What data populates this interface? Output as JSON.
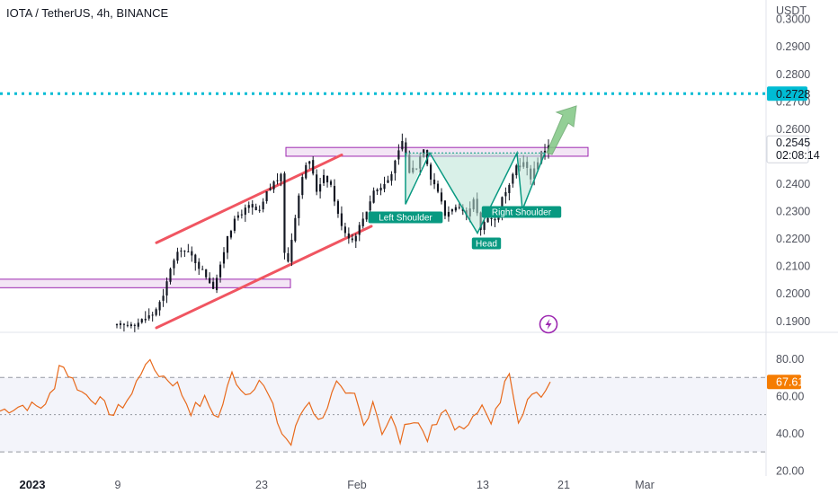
{
  "header": {
    "title": "IOTA / TetherUS, 4h, BINANCE",
    "currency": "USDT"
  },
  "colors": {
    "candle": "#131722",
    "channel": "#f05561",
    "zone_fill": "#f3e5f5",
    "zone_stroke": "#9c27b0",
    "target_line": "#00bcd4",
    "pattern": "#089981",
    "arrow": "#81c784",
    "rsi_line": "#e8691b",
    "rsi_badge": "#f57c00",
    "price_badge_bg": "#ffffff"
  },
  "chart_data": [
    {
      "type": "candlestick",
      "title": "IOTA / TetherUS, 4h, BINANCE",
      "ylabel": "USDT",
      "y_ticks": [
        "0.3000",
        "0.2900",
        "0.2800",
        "0.2700",
        "0.2600",
        "0.2400",
        "0.2300",
        "0.2200",
        "0.2100",
        "0.2000",
        "0.1900"
      ],
      "x_ticks": [
        "2023",
        "9",
        "23",
        "Feb",
        "13",
        "21",
        "Mar"
      ],
      "ylim": [
        0.1865,
        0.303
      ],
      "grid": false,
      "close_path": [
        [
          0,
          0.188
        ],
        [
          6,
          0.1895
        ],
        [
          10,
          0.1925
        ],
        [
          13,
          0.1985
        ],
        [
          15,
          0.2095
        ],
        [
          18,
          0.2165
        ],
        [
          21,
          0.2135
        ],
        [
          25,
          0.2065
        ],
        [
          27,
          0.2025
        ],
        [
          29,
          0.2095
        ],
        [
          31,
          0.2215
        ],
        [
          34,
          0.2285
        ],
        [
          37,
          0.2315
        ],
        [
          40,
          0.2295
        ],
        [
          42,
          0.2365
        ],
        [
          44,
          0.2405
        ],
        [
          46,
          0.2425
        ],
        [
          47,
          0.2155
        ],
        [
          48,
          0.2115
        ],
        [
          50,
          0.2285
        ],
        [
          52,
          0.2435
        ],
        [
          54,
          0.2485
        ],
        [
          56,
          0.2375
        ],
        [
          58,
          0.2435
        ],
        [
          60,
          0.2395
        ],
        [
          62,
          0.2285
        ],
        [
          64,
          0.2225
        ],
        [
          66,
          0.2195
        ],
        [
          68,
          0.2245
        ],
        [
          70,
          0.2305
        ],
        [
          72,
          0.2375
        ],
        [
          74,
          0.2385
        ],
        [
          76,
          0.2415
        ],
        [
          78,
          0.2475
        ],
        [
          80,
          0.2555
        ],
        [
          82,
          0.2445
        ],
        [
          84,
          0.2465
        ],
        [
          86,
          0.2535
        ],
        [
          88,
          0.2425
        ],
        [
          90,
          0.2375
        ],
        [
          92,
          0.2285
        ],
        [
          94,
          0.2315
        ],
        [
          96,
          0.2305
        ],
        [
          98,
          0.2275
        ],
        [
          100,
          0.2335
        ],
        [
          102,
          0.2235
        ],
        [
          104,
          0.2285
        ],
        [
          106,
          0.2265
        ],
        [
          108,
          0.2345
        ],
        [
          110,
          0.2385
        ],
        [
          112,
          0.2465
        ],
        [
          114,
          0.2475
        ],
        [
          116,
          0.2425
        ],
        [
          118,
          0.2485
        ],
        [
          120,
          0.2525
        ],
        [
          121,
          0.2545
        ]
      ],
      "current_price": "0.2545",
      "countdown": "02:08:14",
      "target_price": "0.2728",
      "resistance_zone": [
        0.25,
        0.2532
      ],
      "support_zone": [
        0.2021,
        0.2052
      ],
      "annotations": [
        "Left Shoulder",
        "Head",
        "Right Shoulder"
      ]
    },
    {
      "type": "line",
      "y_ticks": [
        "80.00",
        "60.00",
        "40.00",
        "20.00"
      ],
      "ylim": [
        17,
        88
      ],
      "bands": [
        70,
        50,
        30
      ],
      "current_value": "67.61",
      "values_path": [
        [
          0,
          52
        ],
        [
          5,
          55
        ],
        [
          9,
          54
        ],
        [
          12,
          63
        ],
        [
          13,
          79
        ],
        [
          15,
          72
        ],
        [
          18,
          62
        ],
        [
          22,
          57
        ],
        [
          25,
          50
        ],
        [
          29,
          61
        ],
        [
          32,
          79
        ],
        [
          35,
          72
        ],
        [
          39,
          66
        ],
        [
          42,
          52
        ],
        [
          45,
          58
        ],
        [
          48,
          48
        ],
        [
          51,
          72
        ],
        [
          54,
          61
        ],
        [
          57,
          69
        ],
        [
          59,
          60
        ],
        [
          62,
          40
        ],
        [
          64,
          34
        ],
        [
          66,
          50
        ],
        [
          68,
          58
        ],
        [
          70,
          46
        ],
        [
          72,
          55
        ],
        [
          74,
          66
        ],
        [
          76,
          59
        ],
        [
          78,
          60
        ],
        [
          80,
          44
        ],
        [
          82,
          58
        ],
        [
          84,
          41
        ],
        [
          86,
          48
        ],
        [
          88,
          36
        ],
        [
          90,
          48
        ],
        [
          92,
          45
        ],
        [
          94,
          38
        ],
        [
          96,
          45
        ],
        [
          98,
          52
        ],
        [
          100,
          44
        ],
        [
          102,
          40
        ],
        [
          104,
          52
        ],
        [
          106,
          54
        ],
        [
          108,
          44
        ],
        [
          110,
          58
        ],
        [
          112,
          74
        ],
        [
          114,
          48
        ],
        [
          116,
          58
        ],
        [
          118,
          60
        ],
        [
          120,
          63
        ],
        [
          121,
          67.61
        ]
      ]
    }
  ]
}
